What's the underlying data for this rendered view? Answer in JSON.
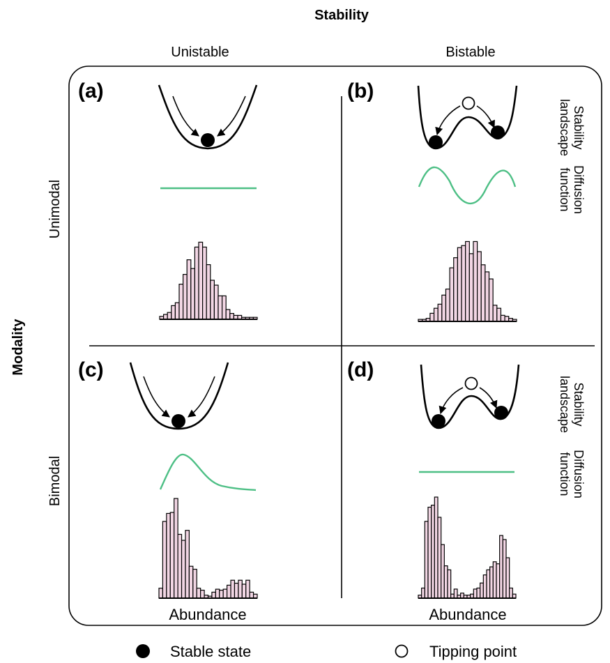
{
  "figure": {
    "stability_header": "Stability",
    "modality_header": "Modality",
    "column_labels": [
      "Unistable",
      "Bistable"
    ],
    "row_labels": [
      "Unimodal",
      "Bimodal"
    ],
    "side_labels": {
      "landscape": [
        "Stability",
        "landscape"
      ],
      "diffusion": [
        "Diffusion",
        "function"
      ]
    },
    "x_axis_label": "Abundance",
    "panels": {
      "a": {
        "label": "(a)",
        "landscape": "unistable",
        "diffusion": "constant",
        "histogram": [
          0.03,
          0.05,
          0.07,
          0.14,
          0.17,
          0.36,
          0.46,
          0.61,
          0.52,
          0.74,
          0.79,
          0.74,
          0.56,
          0.4,
          0.35,
          0.24,
          0.24,
          0.1,
          0.06,
          0.04,
          0.04,
          0.02,
          0.02,
          0.02,
          0.02
        ]
      },
      "b": {
        "label": "(b)",
        "landscape": "bistable",
        "diffusion": "periodic",
        "histogram": [
          0.02,
          0.02,
          0.03,
          0.08,
          0.13,
          0.17,
          0.26,
          0.32,
          0.53,
          0.63,
          0.73,
          0.75,
          0.79,
          0.67,
          0.79,
          0.69,
          0.56,
          0.49,
          0.42,
          0.16,
          0.13,
          0.06,
          0.05,
          0.03,
          0.02
        ]
      },
      "c": {
        "label": "(c)",
        "landscape": "unistable",
        "diffusion": "peaked-decay",
        "histogram": [
          0.1,
          0.77,
          0.85,
          0.86,
          1.0,
          0.64,
          0.58,
          0.68,
          0.32,
          0.29,
          0.1,
          0.08,
          0.03,
          0.02,
          0.06,
          0.09,
          0.08,
          0.09,
          0.13,
          0.18,
          0.15,
          0.18,
          0.14,
          0.18,
          0.06,
          0.04
        ]
      },
      "d": {
        "label": "(d)",
        "landscape": "bistable",
        "diffusion": "constant",
        "histogram": [
          0.03,
          0.1,
          0.76,
          0.9,
          0.92,
          1.0,
          0.8,
          0.53,
          0.32,
          0.28,
          0.04,
          0.09,
          0.03,
          0.05,
          0.03,
          0.03,
          0.04,
          0.09,
          0.1,
          0.15,
          0.23,
          0.28,
          0.31,
          0.36,
          0.34,
          0.62,
          0.58,
          0.4,
          0.1,
          0.04
        ]
      }
    },
    "legend": {
      "stable": "Stable state",
      "tipping": "Tipping point"
    },
    "colors": {
      "diffusion_line": "#4dbf85",
      "histogram_fill": "#f2d6e4",
      "stroke": "#000000"
    }
  }
}
